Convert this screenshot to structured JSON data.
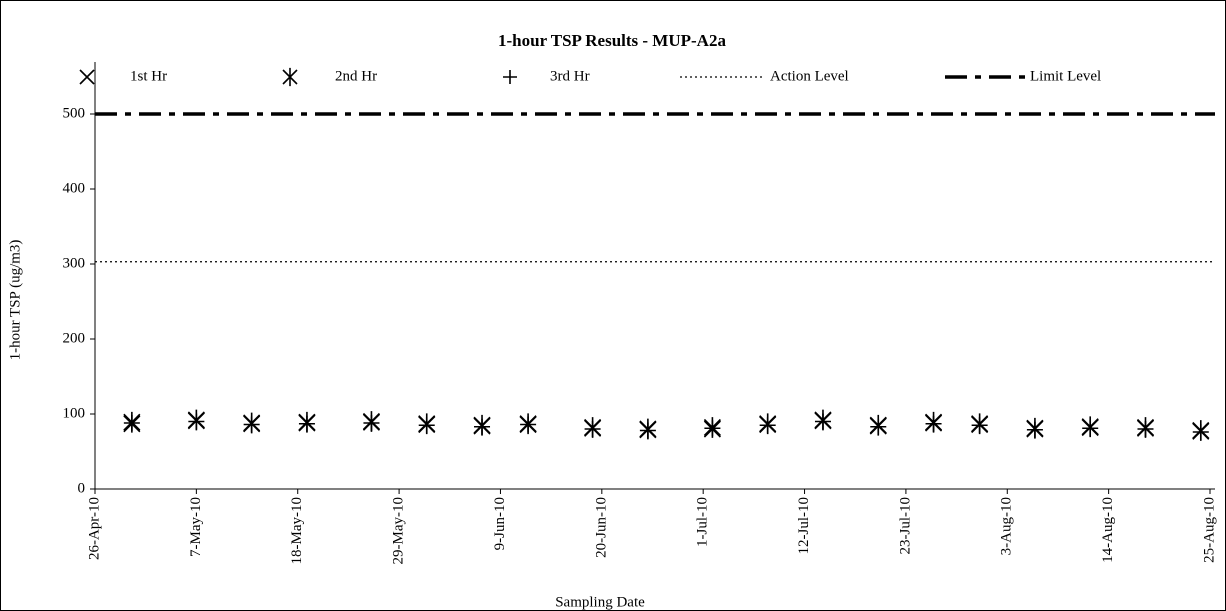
{
  "chart_data": {
    "type": "scatter",
    "title": "1-hour TSP Results - MUP-A2a",
    "x_label": "Sampling Date",
    "y_label": "1-hour TSP (ug/m3)",
    "x": [
      "2010-04-30",
      "2010-05-07",
      "2010-05-13",
      "2010-05-19",
      "2010-05-26",
      "2010-06-01",
      "2010-06-07",
      "2010-06-12",
      "2010-06-19",
      "2010-06-25",
      "2010-07-02",
      "2010-07-08",
      "2010-07-14",
      "2010-07-20",
      "2010-07-26",
      "2010-07-31",
      "2010-08-06",
      "2010-08-12",
      "2010-08-18",
      "2010-08-24"
    ],
    "series": [
      {
        "name": "1st Hr",
        "marker": "x",
        "color": "#000000",
        "values": [
          87,
          91,
          87,
          88,
          89,
          86,
          84,
          86,
          81,
          79,
          80,
          86,
          91,
          84,
          88,
          86,
          80,
          82,
          81,
          77
        ]
      },
      {
        "name": "2nd Hr",
        "marker": "asterisk",
        "color": "#000000",
        "values": [
          89,
          92,
          88,
          89,
          90,
          87,
          85,
          87,
          82,
          80,
          82,
          87,
          92,
          85,
          89,
          87,
          81,
          83,
          82,
          78
        ]
      },
      {
        "name": "3rd Hr",
        "marker": "plus",
        "color": "#000000",
        "values": [
          88,
          90,
          86,
          87,
          88,
          85,
          83,
          86,
          80,
          78,
          81,
          85,
          90,
          83,
          87,
          85,
          79,
          81,
          80,
          76
        ]
      }
    ],
    "reference_lines": [
      {
        "name": "Action Level",
        "value": 303,
        "style": "dotted",
        "color": "#000000"
      },
      {
        "name": "Limit Level",
        "value": 500,
        "style": "dash-dot",
        "color": "#000000"
      }
    ],
    "xlim": [
      "2010-04-26",
      "2010-08-25"
    ],
    "xticks": [
      {
        "value": "2010-04-26",
        "label": "26-Apr-10"
      },
      {
        "value": "2010-05-07",
        "label": "7-May-10"
      },
      {
        "value": "2010-05-18",
        "label": "18-May-10"
      },
      {
        "value": "2010-05-29",
        "label": "29-May-10"
      },
      {
        "value": "2010-06-09",
        "label": "9-Jun-10"
      },
      {
        "value": "2010-06-20",
        "label": "20-Jun-10"
      },
      {
        "value": "2010-07-01",
        "label": "1-Jul-10"
      },
      {
        "value": "2010-07-12",
        "label": "12-Jul-10"
      },
      {
        "value": "2010-07-23",
        "label": "23-Jul-10"
      },
      {
        "value": "2010-08-03",
        "label": "3-Aug-10"
      },
      {
        "value": "2010-08-14",
        "label": "14-Aug-10"
      },
      {
        "value": "2010-08-25",
        "label": "25-Aug-10"
      }
    ],
    "ylim": [
      0,
      500
    ],
    "yticks": [
      0,
      100,
      200,
      300,
      400,
      500
    ],
    "grid": false,
    "legend": "top"
  }
}
